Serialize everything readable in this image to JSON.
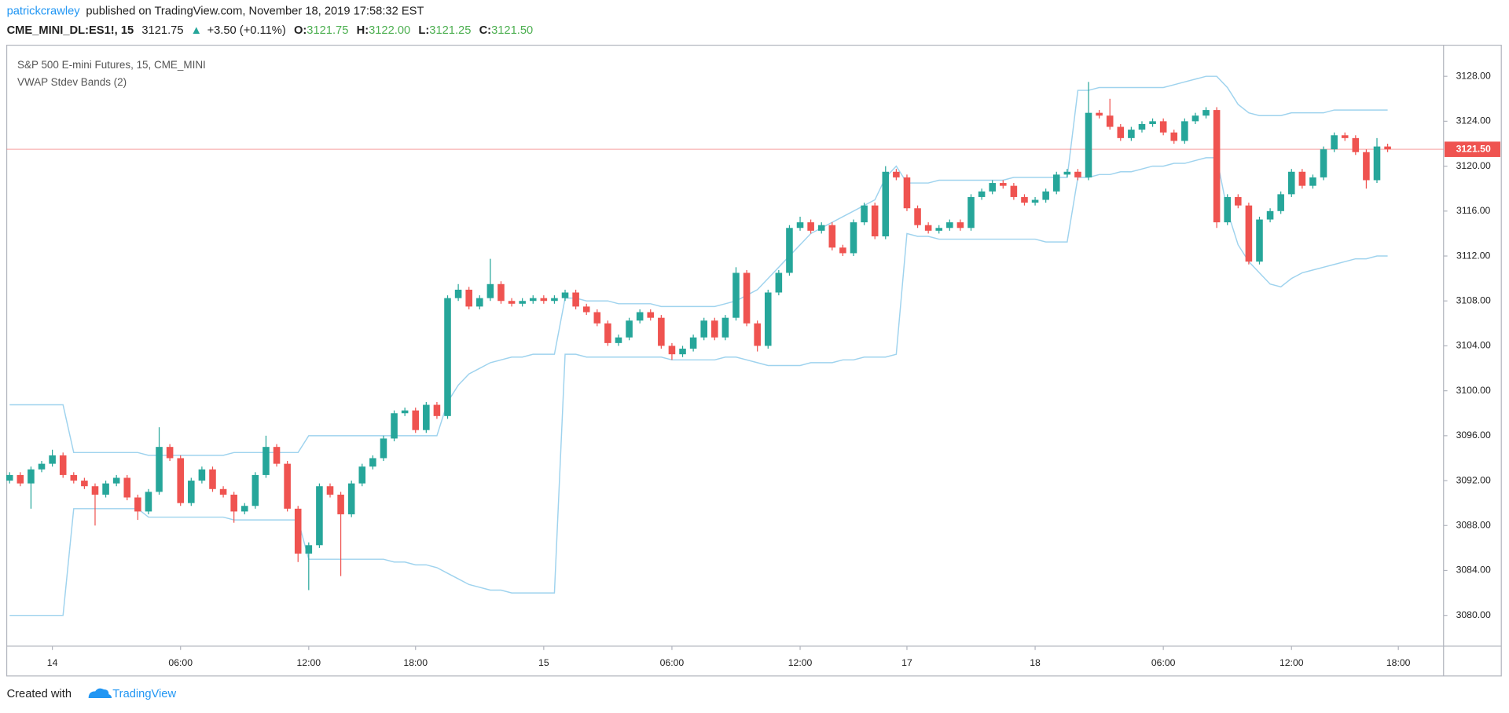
{
  "header": {
    "user": "patrickcrawley",
    "published": "published on TradingView.com, November 18, 2019 17:58:32 EST",
    "symbol": "CME_MINI_DL:ES1!, 15",
    "last": "3121.75",
    "change": "+3.50 (+0.11%)",
    "ohlc": [
      {
        "label": "O:",
        "value": "3121.75"
      },
      {
        "label": "H:",
        "value": "3122.00"
      },
      {
        "label": "L:",
        "value": "3121.25"
      },
      {
        "label": "C:",
        "value": "3121.50"
      }
    ]
  },
  "footer": {
    "text": "Created with",
    "brand": "TradingView"
  },
  "chart_data": {
    "type": "candlestick",
    "legend": [
      "S&P 500 E-mini Futures, 15, CME_MINI",
      "VWAP Stdev Bands (2)"
    ],
    "up_color": "#26a69a",
    "down_color": "#ef5350",
    "grid": false,
    "ylim": [
      3077.26,
      3130.77
    ],
    "yticks": [
      {
        "value": 3080,
        "label": "3080.00"
      },
      {
        "value": 3084,
        "label": "3084.00"
      },
      {
        "value": 3088,
        "label": "3088.00"
      },
      {
        "value": 3092,
        "label": "3092.00"
      },
      {
        "value": 3096,
        "label": "3096.00"
      },
      {
        "value": 3100,
        "label": "3100.00"
      },
      {
        "value": 3104,
        "label": "3104.00"
      },
      {
        "value": 3108,
        "label": "3108.00"
      },
      {
        "value": 3112,
        "label": "3112.00"
      },
      {
        "value": 3116,
        "label": "3116.00"
      },
      {
        "value": 3120,
        "label": "3120.00"
      },
      {
        "value": 3124,
        "label": "3124.00"
      },
      {
        "value": 3128,
        "label": "3128.00"
      }
    ],
    "last_price": {
      "value": 3121.5,
      "label": "3121.50",
      "color": "#ef5350"
    },
    "categories": [
      null,
      null,
      null,
      null,
      "14",
      null,
      null,
      null,
      null,
      null,
      null,
      null,
      null,
      null,
      null,
      null,
      "06:00",
      null,
      null,
      null,
      null,
      null,
      null,
      null,
      null,
      null,
      null,
      null,
      "12:00",
      null,
      null,
      null,
      null,
      null,
      null,
      null,
      null,
      null,
      "18:00",
      null,
      null,
      null,
      null,
      null,
      null,
      null,
      null,
      null,
      null,
      null,
      "15",
      null,
      null,
      null,
      null,
      null,
      null,
      null,
      null,
      null,
      null,
      null,
      "06:00",
      null,
      null,
      null,
      null,
      null,
      null,
      null,
      null,
      null,
      null,
      null,
      "12:00",
      null,
      null,
      null,
      null,
      null,
      null,
      null,
      null,
      null,
      "17",
      null,
      null,
      null,
      null,
      null,
      null,
      null,
      null,
      null,
      null,
      null,
      "18",
      null,
      null,
      null,
      null,
      null,
      null,
      null,
      null,
      null,
      null,
      null,
      "06:00",
      null,
      null,
      null,
      null,
      null,
      null,
      null,
      null,
      null,
      null,
      null,
      "12:00",
      null,
      null,
      null,
      null,
      null,
      null,
      null,
      null,
      null,
      "18:00"
    ],
    "open": [
      3092,
      3092.5,
      3091.75,
      3093,
      3093.5,
      3094.25,
      3092.5,
      3092,
      3091.5,
      3090.75,
      3091.75,
      3092.25,
      3090.5,
      3089.25,
      3091,
      3095,
      3094,
      3090,
      3092,
      3093,
      3091.25,
      3090.75,
      3089.25,
      3089.75,
      3092.5,
      3095,
      3093.5,
      3089.5,
      3085.5,
      3086.25,
      3091.5,
      3090.75,
      3089,
      3091.75,
      3093.25,
      3094,
      3095.75,
      3098,
      3098.25,
      3096.5,
      3098.75,
      3097.75,
      3108.25,
      3109,
      3107.5,
      3108.25,
      3109.5,
      3108,
      3107.75,
      3108,
      3108.25,
      3108,
      3108.25,
      3108.75,
      3107.5,
      3107,
      3106,
      3104.25,
      3104.75,
      3106.25,
      3107,
      3106.5,
      3104,
      3103.25,
      3103.75,
      3104.75,
      3106.25,
      3104.75,
      3106.5,
      3110.5,
      3106,
      3104,
      3108.75,
      3110.5,
      3114.5,
      3115,
      3114.25,
      3114.75,
      3112.75,
      3112.25,
      3115,
      3116.5,
      3113.75,
      3119.5,
      3119,
      3116.25,
      3114.75,
      3114.25,
      3114.5,
      3115,
      3114.5,
      3117.25,
      3117.75,
      3118.5,
      3118.25,
      3117.25,
      3116.75,
      3117,
      3117.75,
      3119.25,
      3119.5,
      3119,
      3124.75,
      3124.5,
      3123.5,
      3122.5,
      3123.25,
      3123.75,
      3124,
      3123,
      3122.25,
      3124,
      3124.5,
      3125,
      3115,
      3117.25,
      3116.5,
      3111.5,
      3115.25,
      3116,
      3117.5,
      3119.5,
      3118.25,
      3119,
      3121.5,
      3122.75,
      3122.5,
      3121.25,
      3118.75,
      3121.75,
      null
    ],
    "high": [
      3092.75,
      3092.75,
      3093.25,
      3093.75,
      3094.75,
      3094.5,
      3092.75,
      3092.25,
      3091.75,
      3092,
      3092.5,
      3092.5,
      3090.75,
      3091.25,
      3096.75,
      3095.25,
      3094.25,
      3092.25,
      3093.25,
      3093.25,
      3091.5,
      3091,
      3090,
      3092.75,
      3096,
      3095.25,
      3093.75,
      3089.75,
      3086.5,
      3091.75,
      3091.75,
      3091,
      3092,
      3093.5,
      3094.25,
      3096,
      3098.25,
      3098.5,
      3098.5,
      3099,
      3099,
      3108.5,
      3109.5,
      3109.25,
      3108.5,
      3111.75,
      3109.75,
      3108.25,
      3108.25,
      3108.5,
      3108.5,
      3108.5,
      3109,
      3109,
      3107.75,
      3107.25,
      3106.25,
      3105,
      3106.5,
      3107.25,
      3107.25,
      3106.75,
      3104.25,
      3104,
      3105,
      3106.5,
      3106.5,
      3106.75,
      3111,
      3110.75,
      3106.25,
      3109,
      3110.75,
      3114.75,
      3115.5,
      3115.25,
      3115,
      3115,
      3113,
      3115.25,
      3116.75,
      3116.75,
      3120,
      3119.75,
      3119.25,
      3116.5,
      3115,
      3114.75,
      3115.25,
      3115.25,
      3117.5,
      3118,
      3118.75,
      3118.75,
      3118.5,
      3117.5,
      3117.25,
      3118,
      3119.5,
      3119.75,
      3119.75,
      3127.5,
      3125,
      3126,
      3123.75,
      3123.5,
      3124,
      3124.25,
      3124.25,
      3123.25,
      3124.25,
      3124.75,
      3125.25,
      3125.25,
      3117.5,
      3117.5,
      3116.75,
      3115.5,
      3116.25,
      3117.75,
      3119.75,
      3119.75,
      3119.25,
      3121.75,
      3123,
      3123,
      3122.75,
      3121.5,
      3122.5,
      3122,
      null
    ],
    "low": [
      3091.75,
      3091.5,
      3089.5,
      3092.75,
      3093.25,
      3092.25,
      3091.75,
      3091.25,
      3088,
      3090.5,
      3091.5,
      3090.25,
      3088.5,
      3089,
      3090.75,
      3093.75,
      3089.75,
      3089.75,
      3091.75,
      3091,
      3090.5,
      3088.25,
      3089,
      3089.5,
      3092.25,
      3093.25,
      3089.25,
      3084.75,
      3082.25,
      3086,
      3090.5,
      3083.5,
      3088.75,
      3091.5,
      3093,
      3093.75,
      3095.5,
      3097.75,
      3096.25,
      3096.25,
      3097.5,
      3097.5,
      3108,
      3107.25,
      3107.25,
      3108,
      3107.75,
      3107.5,
      3107.5,
      3107.75,
      3107.75,
      3107.75,
      3108,
      3107.25,
      3106.75,
      3105.75,
      3104,
      3104,
      3104.5,
      3106,
      3106.25,
      3103.75,
      3102.75,
      3103,
      3103.5,
      3104.5,
      3104.5,
      3104.5,
      3106.25,
      3105.75,
      3103.5,
      3103.75,
      3108.5,
      3110.25,
      3114.25,
      3114,
      3114,
      3112.5,
      3112,
      3112,
      3114.75,
      3113.5,
      3113.5,
      3118.75,
      3116,
      3114.5,
      3114,
      3114,
      3114.25,
      3114.25,
      3114.25,
      3117,
      3117.5,
      3118,
      3117,
      3116.5,
      3116.5,
      3116.75,
      3117.5,
      3119,
      3118.75,
      3118.75,
      3124.25,
      3123.25,
      3122.25,
      3122.25,
      3123,
      3123.5,
      3122.75,
      3122,
      3122,
      3123.75,
      3124.25,
      3114.5,
      3114.75,
      3116.25,
      3111.25,
      3111.25,
      3115,
      3115.75,
      3117.25,
      3118,
      3118,
      3118.75,
      3121.25,
      3122.25,
      3121,
      3118,
      3118.5,
      3121.25,
      null
    ],
    "close": [
      3092.5,
      3091.75,
      3093,
      3093.5,
      3094.25,
      3092.5,
      3092,
      3091.5,
      3090.75,
      3091.75,
      3092.25,
      3090.5,
      3089.25,
      3091,
      3095,
      3094,
      3090,
      3092,
      3093,
      3091.25,
      3090.75,
      3089.25,
      3089.75,
      3092.5,
      3095,
      3093.5,
      3089.5,
      3085.5,
      3086.25,
      3091.5,
      3090.75,
      3089,
      3091.75,
      3093.25,
      3094,
      3095.75,
      3098,
      3098.25,
      3096.5,
      3098.75,
      3097.75,
      3108.25,
      3109,
      3107.5,
      3108.25,
      3109.5,
      3108,
      3107.75,
      3108,
      3108.25,
      3108,
      3108.25,
      3108.75,
      3107.5,
      3107,
      3106,
      3104.25,
      3104.75,
      3106.25,
      3107,
      3106.5,
      3104,
      3103.25,
      3103.75,
      3104.75,
      3106.25,
      3104.75,
      3106.5,
      3110.5,
      3106,
      3104,
      3108.75,
      3110.5,
      3114.5,
      3115,
      3114.25,
      3114.75,
      3112.75,
      3112.25,
      3115,
      3116.5,
      3113.75,
      3119.5,
      3119,
      3116.25,
      3114.75,
      3114.25,
      3114.5,
      3115,
      3114.5,
      3117.25,
      3117.75,
      3118.5,
      3118.25,
      3117.25,
      3116.75,
      3117,
      3117.75,
      3119.25,
      3119.5,
      3119,
      3124.75,
      3124.5,
      3123.5,
      3122.5,
      3123.25,
      3123.75,
      3124,
      3123,
      3122.25,
      3124,
      3124.5,
      3125,
      3115,
      3117.25,
      3116.5,
      3111.5,
      3115.25,
      3116,
      3117.5,
      3119.5,
      3118.25,
      3119,
      3121.5,
      3122.75,
      3122.5,
      3121.25,
      3118.75,
      3121.75,
      3121.5,
      null
    ],
    "bands": {
      "color": "#9fd3ee",
      "upper": [
        3098.75,
        3098.75,
        3098.75,
        3098.75,
        3098.75,
        3098.75,
        3094.5,
        3094.5,
        3094.5,
        3094.5,
        3094.5,
        3094.5,
        3094.5,
        3094.25,
        3094.25,
        3094.25,
        3094.25,
        3094.25,
        3094.25,
        3094.25,
        3094.25,
        3094.5,
        3094.5,
        3094.5,
        3094.5,
        3094.5,
        3094.5,
        3094.5,
        3096,
        3096,
        3096,
        3096,
        3096,
        3096,
        3096,
        3096,
        3096,
        3096,
        3096,
        3096,
        3096,
        3099,
        3100.5,
        3101.5,
        3102,
        3102.5,
        3102.75,
        3103,
        3103,
        3103.25,
        3103.25,
        3103.25,
        3108.25,
        3108.25,
        3108,
        3108,
        3108,
        3107.75,
        3107.75,
        3107.75,
        3107.75,
        3107.5,
        3107.5,
        3107.5,
        3107.5,
        3107.5,
        3107.5,
        3107.75,
        3108,
        3108.5,
        3109,
        3110,
        3111,
        3112,
        3113,
        3114,
        3114.5,
        3115,
        3115.5,
        3116,
        3116.5,
        3117,
        3119,
        3120,
        3118.5,
        3118.5,
        3118.5,
        3118.75,
        3118.75,
        3118.75,
        3118.75,
        3118.75,
        3118.75,
        3118.75,
        3119,
        3119,
        3119,
        3119,
        3119,
        3119,
        3126.75,
        3126.75,
        3127,
        3127,
        3127,
        3127,
        3127,
        3127,
        3127,
        3127.25,
        3127.5,
        3127.75,
        3128,
        3128,
        3127,
        3125.5,
        3124.75,
        3124.5,
        3124.5,
        3124.5,
        3124.75,
        3124.75,
        3124.75,
        3124.75,
        3125,
        3125,
        3125,
        3125,
        3125,
        3125,
        null
      ],
      "lower": [
        3080,
        3080,
        3080,
        3080,
        3080,
        3080,
        3089.5,
        3089.5,
        3089.5,
        3089.5,
        3089.5,
        3089.5,
        3089.5,
        3088.75,
        3088.75,
        3088.75,
        3088.75,
        3088.75,
        3088.75,
        3088.75,
        3088.75,
        3088.5,
        3088.5,
        3088.5,
        3088.5,
        3088.5,
        3088.5,
        3088.5,
        3085,
        3085,
        3085,
        3085,
        3085,
        3085,
        3085,
        3085,
        3084.75,
        3084.75,
        3084.5,
        3084.5,
        3084.25,
        3083.75,
        3083.25,
        3082.75,
        3082.5,
        3082.25,
        3082.25,
        3082,
        3082,
        3082,
        3082,
        3082,
        3103.25,
        3103.25,
        3103,
        3103,
        3103,
        3103,
        3103,
        3103,
        3103,
        3103,
        3102.75,
        3102.75,
        3102.75,
        3102.75,
        3102.75,
        3103,
        3103,
        3102.75,
        3102.5,
        3102.25,
        3102.25,
        3102.25,
        3102.25,
        3102.5,
        3102.5,
        3102.5,
        3102.75,
        3102.75,
        3103,
        3103,
        3103,
        3103.25,
        3114,
        3113.75,
        3113.75,
        3113.5,
        3113.5,
        3113.5,
        3113.5,
        3113.5,
        3113.5,
        3113.5,
        3113.5,
        3113.5,
        3113.5,
        3113.25,
        3113.25,
        3113.25,
        3119,
        3119,
        3119.25,
        3119.25,
        3119.5,
        3119.5,
        3119.75,
        3120,
        3120,
        3120.25,
        3120.25,
        3120.5,
        3120.75,
        3120.75,
        3116,
        3113,
        3111.5,
        3110.5,
        3109.5,
        3109.25,
        3110,
        3110.5,
        3110.75,
        3111,
        3111.25,
        3111.5,
        3111.75,
        3111.75,
        3112,
        3112,
        null
      ]
    }
  }
}
